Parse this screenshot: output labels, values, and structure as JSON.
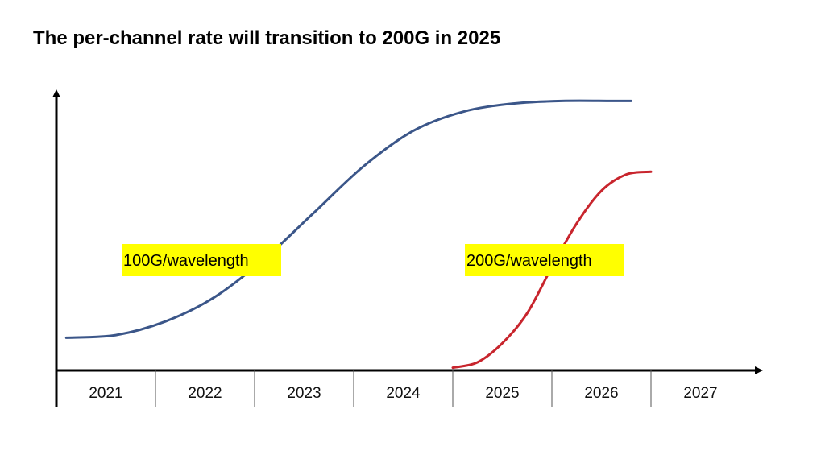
{
  "title": "The per-channel rate will transition to 200G in 2025",
  "chart_data": {
    "type": "line",
    "x_tick_labels": [
      "2021",
      "2022",
      "2023",
      "2024",
      "2025",
      "2026",
      "2027"
    ],
    "xlim": [
      2021,
      2028
    ],
    "ylim": [
      0,
      100
    ],
    "y_ticks_shown": false,
    "grid": false,
    "series": [
      {
        "name": "100G/wavelength",
        "color": "#3b5689",
        "label_highlight": "#ffff00",
        "points": [
          [
            2021.1,
            12
          ],
          [
            2021.6,
            13
          ],
          [
            2022.1,
            18
          ],
          [
            2022.6,
            27
          ],
          [
            2023.1,
            41
          ],
          [
            2023.6,
            58
          ],
          [
            2024.1,
            75
          ],
          [
            2024.6,
            88
          ],
          [
            2025.1,
            95
          ],
          [
            2025.6,
            98
          ],
          [
            2026.1,
            99
          ],
          [
            2026.6,
            99
          ],
          [
            2026.8,
            99
          ]
        ]
      },
      {
        "name": "200G/wavelength",
        "color": "#c8252d",
        "label_highlight": "#ffff00",
        "points": [
          [
            2025.0,
            1
          ],
          [
            2025.25,
            3
          ],
          [
            2025.5,
            10
          ],
          [
            2025.75,
            21
          ],
          [
            2026.0,
            38
          ],
          [
            2026.25,
            54
          ],
          [
            2026.5,
            66
          ],
          [
            2026.75,
            72
          ],
          [
            2027.0,
            73
          ]
        ]
      }
    ]
  }
}
